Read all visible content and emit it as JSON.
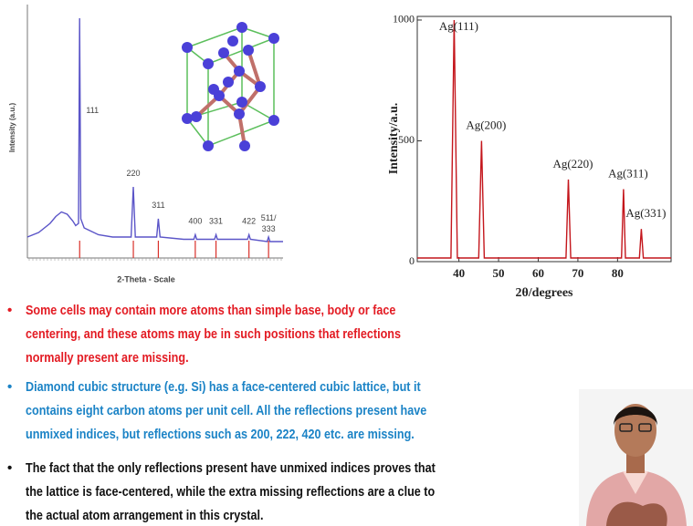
{
  "chart_data": [
    {
      "type": "line",
      "ylabel": "Intensity (a.u.)",
      "xlabel": "2-Theta - Scale",
      "xlim": [
        10,
        100
      ],
      "ylim": [
        0,
        100
      ],
      "color": "#5b55c8",
      "peak_color": "#d9302a",
      "x": [
        10,
        14,
        18,
        20,
        22,
        24,
        26,
        27,
        28,
        28.4,
        28.8,
        30,
        35,
        40,
        46.5,
        47.3,
        48,
        55.5,
        56.1,
        56.7,
        65,
        68.6,
        69.1,
        69.6,
        75.9,
        76.4,
        76.9,
        87.5,
        88,
        88.5,
        94.4,
        94.9,
        95.4,
        100
      ],
      "values": [
        4,
        6,
        10,
        13,
        15,
        14,
        11,
        9,
        10,
        100,
        12,
        8,
        5,
        4,
        4,
        26,
        4,
        4,
        12,
        4,
        3,
        3,
        5,
        3,
        3,
        5,
        3,
        3,
        5,
        3,
        2,
        4,
        2,
        2
      ],
      "peaks": {
        "x": [
          28.4,
          47.3,
          56.1,
          69.1,
          76.4,
          88,
          94.9
        ],
        "values": [
          100,
          26,
          12,
          5,
          5,
          5,
          4
        ],
        "labels": [
          "111",
          "220",
          "311",
          "400",
          "331",
          "422",
          "511/\n333"
        ]
      }
    },
    {
      "type": "line",
      "ylabel": "Intensity/a.u.",
      "xlabel": "2θ/degrees",
      "xlim": [
        29.5,
        93.5
      ],
      "ylim": [
        0,
        1015
      ],
      "xticks": [
        40,
        50,
        60,
        70,
        80
      ],
      "yticks": [
        0,
        500,
        1000
      ],
      "color": "#c4161c",
      "x": [
        29.5,
        38,
        38.8,
        39.6,
        45,
        45.7,
        46.4,
        67,
        67.6,
        68.2,
        81,
        81.5,
        82,
        85.5,
        86,
        86.5,
        93.5
      ],
      "values": [
        15,
        15,
        1000,
        15,
        15,
        500,
        15,
        15,
        340,
        15,
        15,
        300,
        15,
        15,
        135,
        15,
        15
      ],
      "peaks": {
        "x": [
          38.8,
          45.7,
          67.6,
          81.5,
          86
        ],
        "values": [
          1000,
          500,
          340,
          300,
          135
        ],
        "labels": [
          "Ag(111)",
          "Ag(200)",
          "Ag(220)",
          "Ag(311)",
          "Ag(331)"
        ]
      }
    }
  ],
  "bullets": [
    {
      "color": "#e31b23",
      "lines": [
        "Some cells may contain more atoms than simple base, body or face",
        "centering, and these atoms may be in such positions that reflections",
        "normally present are missing."
      ]
    },
    {
      "color": "#1b83c6",
      "lines": [
        "Diamond cubic structure (e.g. Si) has a face-centered cubic lattice, but it",
        "contains eight carbon atoms per unit cell. All the reflections present have",
        "unmixed indices, but reflections such as 200, 222, 420 etc. are missing."
      ]
    },
    {
      "color": "#111111",
      "lines": [
        "The fact that the only reflections present have unmixed indices proves that",
        "the lattice is face-centered, while the extra missing reflections are a clue to",
        "the actual atom arrangement in this crystal."
      ]
    }
  ]
}
